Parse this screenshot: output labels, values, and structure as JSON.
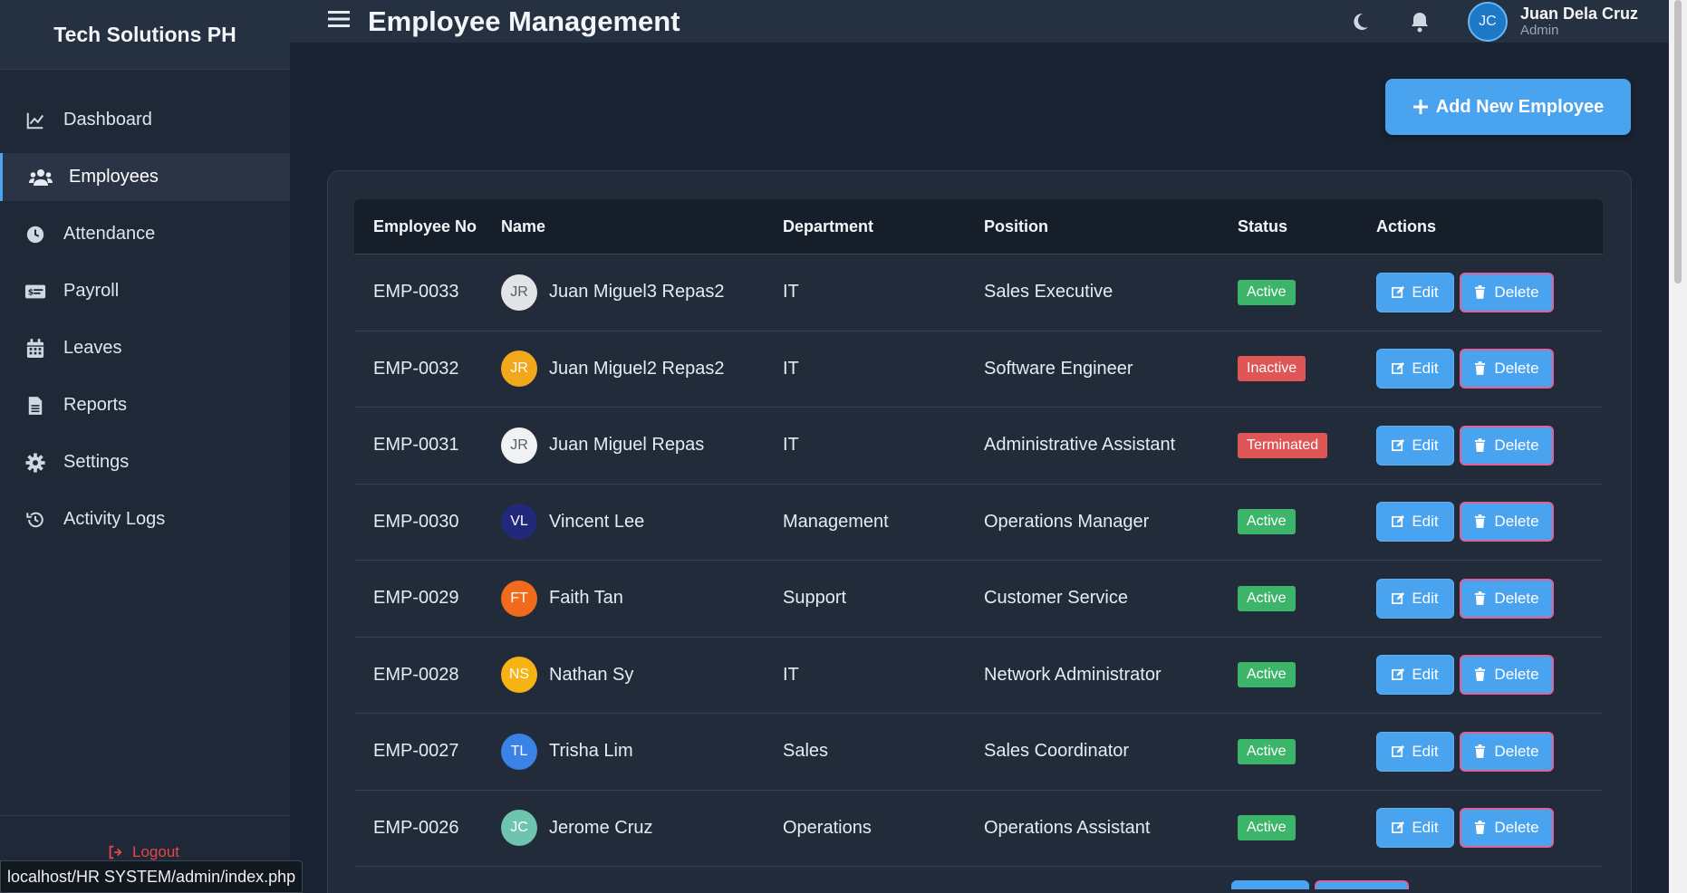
{
  "sidebar": {
    "brand": "Tech Solutions PH",
    "items": [
      {
        "label": "Dashboard",
        "icon": "chart-line-icon",
        "active": false
      },
      {
        "label": "Employees",
        "icon": "users-icon",
        "active": true
      },
      {
        "label": "Attendance",
        "icon": "clock-icon",
        "active": false
      },
      {
        "label": "Payroll",
        "icon": "money-check-icon",
        "active": false
      },
      {
        "label": "Leaves",
        "icon": "calendar-icon",
        "active": false
      },
      {
        "label": "Reports",
        "icon": "file-icon",
        "active": false
      },
      {
        "label": "Settings",
        "icon": "gear-icon",
        "active": false
      },
      {
        "label": "Activity Logs",
        "icon": "history-icon",
        "active": false
      }
    ],
    "logout_label": "Logout"
  },
  "status_url": "localhost/HR SYSTEM/admin/index.php",
  "header": {
    "title": "Employee Management",
    "user": {
      "initials": "JC",
      "name": "Juan Dela Cruz",
      "role": "Admin"
    }
  },
  "main": {
    "add_button_label": "Add New Employee",
    "columns": [
      "Employee No",
      "Name",
      "Department",
      "Position",
      "Status",
      "Actions"
    ],
    "edit_label": "Edit",
    "delete_label": "Delete",
    "rows": [
      {
        "no": "EMP-0033",
        "initials": "JR",
        "avatar_bg": "#e2e4e8",
        "avatar_fg": "#555f6e",
        "name": "Juan Miguel3 Repas2",
        "dept": "IT",
        "position": "Sales Executive",
        "status": "Active",
        "status_color": "#3cb46a"
      },
      {
        "no": "EMP-0032",
        "initials": "JR",
        "avatar_bg": "#f2a81d",
        "avatar_fg": "#ffffff",
        "name": "Juan Miguel2 Repas2",
        "dept": "IT",
        "position": "Software Engineer",
        "status": "Inactive",
        "status_color": "#e05555"
      },
      {
        "no": "EMP-0031",
        "initials": "JR",
        "avatar_bg": "#f1f2f4",
        "avatar_fg": "#555f6e",
        "name": "Juan Miguel Repas",
        "dept": "IT",
        "position": "Administrative Assistant",
        "status": "Terminated",
        "status_color": "#e05555"
      },
      {
        "no": "EMP-0030",
        "initials": "VL",
        "avatar_bg": "#22287a",
        "avatar_fg": "#ffffff",
        "name": "Vincent Lee",
        "dept": "Management",
        "position": "Operations Manager",
        "status": "Active",
        "status_color": "#3cb46a"
      },
      {
        "no": "EMP-0029",
        "initials": "FT",
        "avatar_bg": "#f26b1d",
        "avatar_fg": "#ffffff",
        "name": "Faith Tan",
        "dept": "Support",
        "position": "Customer Service",
        "status": "Active",
        "status_color": "#3cb46a"
      },
      {
        "no": "EMP-0028",
        "initials": "NS",
        "avatar_bg": "#f7b313",
        "avatar_fg": "#ffffff",
        "name": "Nathan Sy",
        "dept": "IT",
        "position": "Network Administrator",
        "status": "Active",
        "status_color": "#3cb46a"
      },
      {
        "no": "EMP-0027",
        "initials": "TL",
        "avatar_bg": "#3b82e6",
        "avatar_fg": "#ffffff",
        "name": "Trisha Lim",
        "dept": "Sales",
        "position": "Sales Coordinator",
        "status": "Active",
        "status_color": "#3cb46a"
      },
      {
        "no": "EMP-0026",
        "initials": "JC",
        "avatar_bg": "#6fc4b0",
        "avatar_fg": "#ffffff",
        "name": "Jerome Cruz",
        "dept": "Operations",
        "position": "Operations Assistant",
        "status": "Active",
        "status_color": "#3cb46a"
      }
    ]
  },
  "colors": {
    "accent": "#4aa3ef",
    "active": "#3cb46a",
    "danger": "#e05555",
    "logout": "#e64747"
  }
}
